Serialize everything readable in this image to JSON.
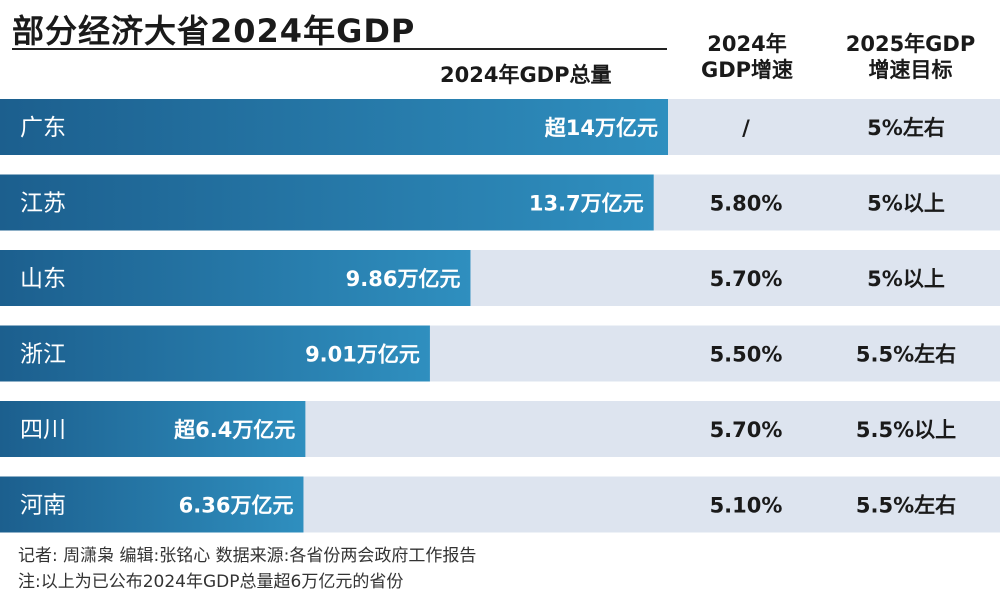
{
  "title": "部分经济大省2024年GDP",
  "headers": {
    "total": "2024年GDP总量",
    "growth": [
      "2024年",
      "GDP增速"
    ],
    "target": [
      "2025年GDP",
      "增速目标"
    ]
  },
  "chart_data": {
    "type": "bar",
    "orientation": "horizontal",
    "title": "部分经济大省2024年GDP",
    "xlabel": "2024年GDP总量",
    "unit": "万亿元",
    "xlim": [
      0,
      14
    ],
    "categories": [
      "广东",
      "江苏",
      "山东",
      "浙江",
      "四川",
      "河南"
    ],
    "values": [
      14,
      13.7,
      9.86,
      9.01,
      6.4,
      6.36
    ],
    "value_labels": [
      "超14万亿元",
      "13.7万亿元",
      "9.86万亿元",
      "9.01万亿元",
      "超6.4万亿元",
      "6.36万亿元"
    ],
    "growth_2024": [
      "/",
      "5.80%",
      "5.70%",
      "5.50%",
      "5.70%",
      "5.10%"
    ],
    "target_2025": [
      "5%左右",
      "5%以上",
      "5%以上",
      "5.5%左右",
      "5.5%以上",
      "5.5%左右"
    ]
  },
  "colors": {
    "bar_light": "#2f8fbf",
    "bar_dark": "#1c5f8e",
    "row_bg": "#dde4ef"
  },
  "footer": {
    "credit": "记者: 周潇枭 编辑:张铭心 数据来源:各省份两会政府工作报告",
    "note": "注:以上为已公布2024年GDP总量超6万亿元的省份"
  }
}
